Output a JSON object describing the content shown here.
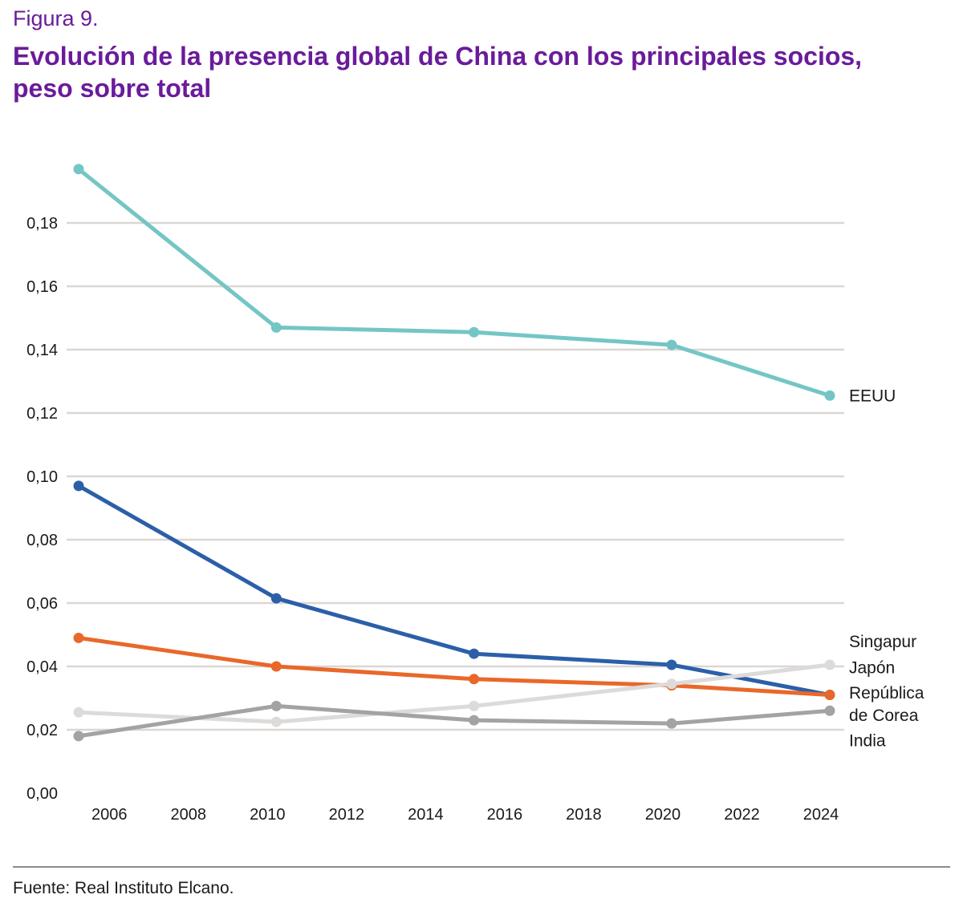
{
  "figure_label": "Figura 9.",
  "title_lines": [
    "Evolución de la presencia global de China con los principales socios,",
    "peso sobre total"
  ],
  "source": "Fuente: Real Instituto Elcano.",
  "chart_data": {
    "type": "line",
    "title": "Evolución de la presencia global de China con los principales socios, peso sobre total",
    "xlabel": "",
    "ylabel": "",
    "xlim": [
      2005,
      2024
    ],
    "ylim": [
      0,
      0.2
    ],
    "grid": true,
    "legend": "direct labels at right end of lines",
    "x_ticks": [
      2006,
      2008,
      2010,
      2012,
      2014,
      2016,
      2018,
      2020,
      2022,
      2024
    ],
    "y_ticks": [
      0.0,
      0.02,
      0.04,
      0.06,
      0.08,
      0.1,
      0.12,
      0.14,
      0.16,
      0.18
    ],
    "y_tick_labels": [
      "0,00",
      "0,02",
      "0,04",
      "0,06",
      "0,08",
      "0,10",
      "0,12",
      "0,14",
      "0,16",
      "0,18"
    ],
    "x": [
      2005,
      2010,
      2015,
      2020,
      2024
    ],
    "series": [
      {
        "name": "EEUU",
        "color": "#74c6c5",
        "values": [
          0.197,
          0.147,
          0.1455,
          0.1415,
          0.1255
        ]
      },
      {
        "name": "Singapur",
        "color": "#2b5fa8",
        "values": [
          0.097,
          0.0615,
          0.044,
          0.0405,
          0.031
        ]
      },
      {
        "name": "Japón",
        "color": "#e8682a",
        "values": [
          0.049,
          0.04,
          0.036,
          0.034,
          0.031
        ]
      },
      {
        "name": "República de Corea",
        "color": "#dddada",
        "values": [
          0.0255,
          0.0225,
          0.0275,
          0.0345,
          0.0405
        ]
      },
      {
        "name": "India",
        "color": "#a3a3a3",
        "values": [
          0.018,
          0.0275,
          0.023,
          0.022,
          0.026
        ]
      }
    ],
    "end_labels": [
      {
        "text": "EEUU",
        "value": 0.1255
      },
      {
        "text": "Singapur",
        "value": 0.0478
      },
      {
        "text": "Japón",
        "value": 0.0396
      },
      {
        "text": "República",
        "value": 0.0316
      },
      {
        "text": "de Corea",
        "value": 0.0245
      },
      {
        "text": "India",
        "value": 0.0166
      }
    ]
  }
}
